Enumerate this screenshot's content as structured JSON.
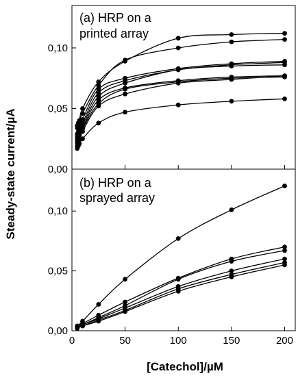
{
  "chart_data": [
    {
      "type": "line",
      "title": "",
      "annotation_lines": [
        "(a) HRP on a",
        "printed array"
      ],
      "ylabel": "Steady-state current/µA",
      "xlabel": "",
      "xlim": [
        0,
        210
      ],
      "ylim": [
        0,
        0.135
      ],
      "yticks": [
        "0,00",
        "0,05",
        "0,10"
      ],
      "ytick_values": [
        0,
        0.05,
        0.1
      ],
      "xticks": [],
      "grid": false,
      "x": [
        5,
        6,
        7,
        10,
        25,
        50,
        100,
        150,
        200
      ],
      "series": [
        {
          "values": [
            0.034,
            0.037,
            0.04,
            0.05,
            0.072,
            0.089,
            0.108,
            0.111,
            0.112
          ]
        },
        {
          "values": [
            0.036,
            0.038,
            0.04,
            0.046,
            0.069,
            0.09,
            0.1,
            0.105,
            0.107
          ]
        },
        {
          "values": [
            0.029,
            0.031,
            0.035,
            0.041,
            0.066,
            0.075,
            0.083,
            0.087,
            0.089
          ]
        },
        {
          "values": [
            0.027,
            0.03,
            0.033,
            0.038,
            0.063,
            0.073,
            0.082,
            0.086,
            0.088
          ]
        },
        {
          "values": [
            0.025,
            0.028,
            0.031,
            0.036,
            0.06,
            0.071,
            0.082,
            0.085,
            0.086
          ]
        },
        {
          "values": [
            0.023,
            0.025,
            0.028,
            0.034,
            0.057,
            0.067,
            0.073,
            0.076,
            0.077
          ]
        },
        {
          "values": [
            0.021,
            0.023,
            0.026,
            0.033,
            0.054,
            0.066,
            0.072,
            0.075,
            0.076
          ]
        },
        {
          "values": [
            0.019,
            0.021,
            0.024,
            0.031,
            0.052,
            0.062,
            0.071,
            0.074,
            0.077
          ]
        },
        {
          "values": [
            0.017,
            0.019,
            0.021,
            0.025,
            0.038,
            0.047,
            0.053,
            0.056,
            0.058
          ]
        }
      ]
    },
    {
      "type": "line",
      "title": "",
      "annotation_lines": [
        "(b) HRP on a",
        "sprayed array"
      ],
      "ylabel": "Steady-state current/µA",
      "xlabel": "[Catechol]/µM",
      "xlim": [
        0,
        210
      ],
      "ylim": [
        0,
        0.135
      ],
      "yticks": [
        "0,00",
        "0,05",
        "0,10"
      ],
      "ytick_values": [
        0,
        0.05,
        0.1
      ],
      "xticks": [
        "0",
        "50",
        "100",
        "150",
        "200"
      ],
      "xtick_values": [
        0,
        50,
        100,
        150,
        200
      ],
      "grid": false,
      "x": [
        5,
        10,
        25,
        50,
        100,
        150,
        200
      ],
      "series": [
        {
          "values": [
            0.004,
            0.008,
            0.022,
            0.043,
            0.077,
            0.101,
            0.121
          ]
        },
        {
          "values": [
            0.004,
            0.006,
            0.013,
            0.024,
            0.044,
            0.06,
            0.07
          ]
        },
        {
          "values": [
            0.003,
            0.005,
            0.011,
            0.021,
            0.043,
            0.058,
            0.067
          ]
        },
        {
          "values": [
            0.003,
            0.005,
            0.01,
            0.019,
            0.037,
            0.05,
            0.06
          ]
        },
        {
          "values": [
            0.002,
            0.004,
            0.009,
            0.017,
            0.035,
            0.047,
            0.057
          ]
        },
        {
          "values": [
            0.002,
            0.004,
            0.008,
            0.016,
            0.033,
            0.045,
            0.055
          ]
        }
      ]
    }
  ]
}
